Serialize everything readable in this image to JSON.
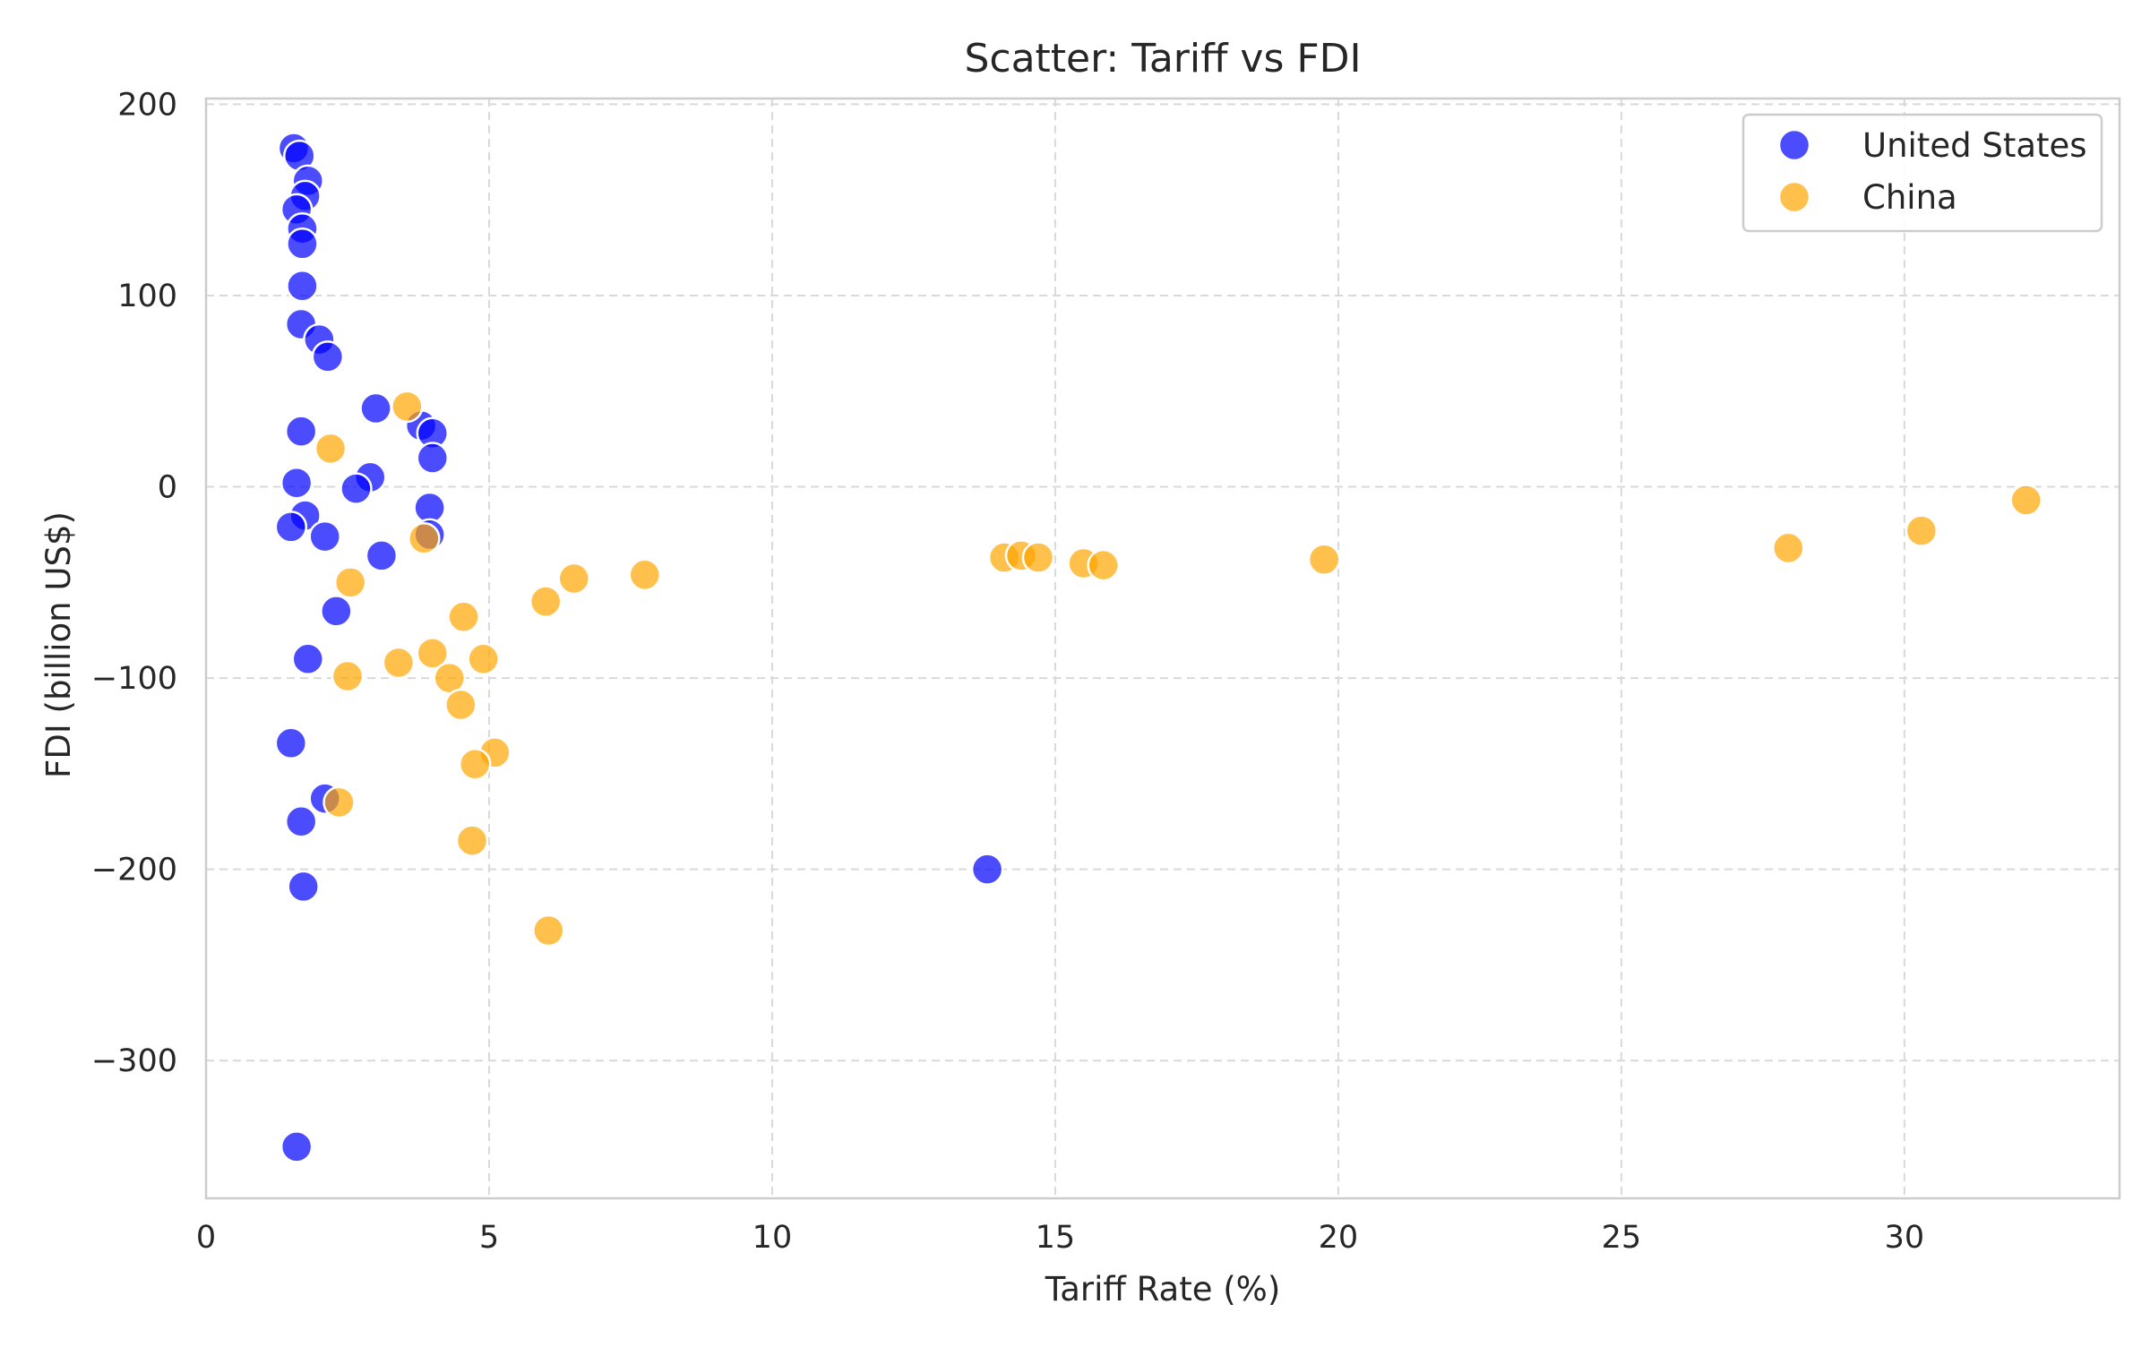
{
  "chart_data": {
    "type": "scatter",
    "title": "Scatter: Tariff vs FDI",
    "xlabel": "Tariff Rate (%)",
    "ylabel": "FDI (billion US$)",
    "xlim": [
      0,
      33.8
    ],
    "ylim": [
      -372,
      203
    ],
    "xticks": [
      0,
      5,
      10,
      15,
      20,
      25,
      30
    ],
    "yticks": [
      200,
      100,
      0,
      -100,
      -200,
      -300
    ],
    "grid": true,
    "legend_position": "top-right",
    "series": [
      {
        "name": "United States",
        "color": "#0000ff",
        "points": [
          [
            1.55,
            177
          ],
          [
            1.65,
            173
          ],
          [
            1.8,
            160
          ],
          [
            1.75,
            152
          ],
          [
            1.6,
            145
          ],
          [
            1.7,
            135
          ],
          [
            1.7,
            127
          ],
          [
            1.7,
            105
          ],
          [
            1.68,
            85
          ],
          [
            2.0,
            77
          ],
          [
            2.15,
            68
          ],
          [
            3.0,
            41
          ],
          [
            3.8,
            32
          ],
          [
            4.0,
            28
          ],
          [
            1.68,
            29
          ],
          [
            4.0,
            15
          ],
          [
            2.9,
            5
          ],
          [
            1.6,
            2
          ],
          [
            2.65,
            -1
          ],
          [
            3.95,
            -11
          ],
          [
            1.75,
            -15
          ],
          [
            1.5,
            -21
          ],
          [
            2.1,
            -26
          ],
          [
            3.95,
            -25
          ],
          [
            3.1,
            -36
          ],
          [
            2.3,
            -65
          ],
          [
            1.8,
            -90
          ],
          [
            1.5,
            -134
          ],
          [
            2.1,
            -163
          ],
          [
            1.68,
            -175
          ],
          [
            1.72,
            -209
          ],
          [
            13.8,
            -200
          ],
          [
            1.6,
            -345
          ]
        ]
      },
      {
        "name": "China",
        "color": "#ffa500",
        "points": [
          [
            3.55,
            42
          ],
          [
            2.2,
            20
          ],
          [
            3.85,
            -27
          ],
          [
            2.55,
            -50
          ],
          [
            6.5,
            -48
          ],
          [
            7.75,
            -46
          ],
          [
            6.0,
            -60
          ],
          [
            4.55,
            -68
          ],
          [
            4.0,
            -87
          ],
          [
            4.9,
            -90
          ],
          [
            3.4,
            -92
          ],
          [
            2.5,
            -99
          ],
          [
            4.3,
            -100
          ],
          [
            4.5,
            -114
          ],
          [
            5.1,
            -139
          ],
          [
            4.75,
            -145
          ],
          [
            2.35,
            -165
          ],
          [
            4.7,
            -185
          ],
          [
            6.05,
            -232
          ],
          [
            14.1,
            -37
          ],
          [
            14.4,
            -36
          ],
          [
            14.7,
            -37
          ],
          [
            15.5,
            -40
          ],
          [
            15.85,
            -41
          ],
          [
            19.75,
            -38
          ],
          [
            27.95,
            -32
          ],
          [
            30.3,
            -23
          ],
          [
            32.15,
            -7
          ]
        ]
      }
    ]
  }
}
